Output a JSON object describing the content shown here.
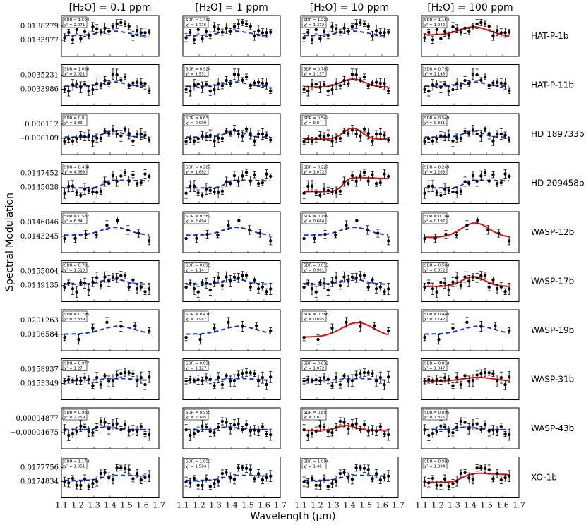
{
  "figure": {
    "column_titles": [
      "[H₂O] = 0.1  ppm",
      "[H₂O] = 1  ppm",
      "[H₂O] = 10  ppm",
      "[H₂O] = 100  ppm"
    ],
    "ylabel": "Spectral Modulation",
    "xlabel": "Wavelength (μm)",
    "xticks": [
      "1.1",
      "1.2",
      "1.3",
      "1.4",
      "1.5",
      "1.6",
      "1.7"
    ],
    "xlim": [
      1.1,
      1.7
    ],
    "colors": {
      "model_fit": "#dd1111",
      "model_flat": "#1133dd",
      "data": "#000000"
    }
  },
  "chart_data": {
    "type": "scatter",
    "rows": [
      {
        "planet": "HAT-P-1b",
        "yticks": [
          "0.0138279",
          "0.0133977"
        ],
        "panels": [
          {
            "sdr": "SDR = 1.504",
            "chi2": "χ² = 2.071",
            "fit": "dashed"
          },
          {
            "sdr": "SDR = 1.432",
            "chi2": "χ² = 1.776",
            "fit": "dashed"
          },
          {
            "sdr": "SDR = 1.223",
            "chi2": "χ² = 1.372",
            "fit": "dashed"
          },
          {
            "sdr": "SDR = 1.154",
            "chi2": "χ² = 1.242",
            "fit": "solid"
          }
        ]
      },
      {
        "planet": "HAT-P-11b",
        "yticks": [
          "0.0035231",
          "0.0033986"
        ],
        "panels": [
          {
            "sdr": "SDR = 1.038",
            "chi2": "χ² = 2.021",
            "fit": "dashed"
          },
          {
            "sdr": "SDR = 0.924",
            "chi2": "χ² = 1.531",
            "fit": "dashed"
          },
          {
            "sdr": "SDR = 0.787",
            "chi2": "χ² = 1.137",
            "fit": "solid"
          },
          {
            "sdr": "SDR = 0.792",
            "chi2": "χ² = 1.145",
            "fit": "dashed"
          }
        ]
      },
      {
        "planet": "HD 189733b",
        "yticks": [
          "0.000112",
          "−0.000109"
        ],
        "panels": [
          {
            "sdr": "SDR = 0.8",
            "chi2": "χ² = 1.83",
            "fit": "dashed"
          },
          {
            "sdr": "SDR = 0.63",
            "chi2": "χ² = 0.999",
            "fit": "dashed"
          },
          {
            "sdr": "SDR = 0.542",
            "chi2": "χ² = 0.8",
            "fit": "solid"
          },
          {
            "sdr": "SDR = 0.549",
            "chi2": "χ² = 0.831",
            "fit": "dashed"
          }
        ]
      },
      {
        "planet": "HD 209458b",
        "yticks": [
          "0.0147452",
          "0.0145028"
        ],
        "panels": [
          {
            "sdr": "SDR = 0.468",
            "chi2": "χ² = 4.669",
            "fit": "dashed"
          },
          {
            "sdr": "SDR = 0.287",
            "chi2": "χ² = 1.682",
            "fit": "dashed"
          },
          {
            "sdr": "SDR = 0.227",
            "chi2": "χ² = 1.072",
            "fit": "solid"
          },
          {
            "sdr": "SDR = 0.249",
            "chi2": "χ² = 1.283",
            "fit": "dashed"
          }
        ]
      },
      {
        "planet": "WASP-12b",
        "yticks": [
          "0.0146046",
          "0.0143245"
        ],
        "panels": [
          {
            "sdr": "SDR = 0.587",
            "chi2": "χ² = 6.84",
            "fit": "dashed"
          },
          {
            "sdr": "SDR = 0.387",
            "chi2": "χ² = 2.494",
            "fit": "dashed"
          },
          {
            "sdr": "SDR = 0.199",
            "chi2": "χ² = 0.664",
            "fit": "dashed"
          },
          {
            "sdr": "SDR = 0.104",
            "chi2": "χ² = 0.197",
            "fit": "solid"
          }
        ]
      },
      {
        "planet": "WASP-17b",
        "yticks": [
          "0.0155004",
          "0.0149135"
        ],
        "panels": [
          {
            "sdr": "SDR = 0.781",
            "chi2": "χ² = 1.519",
            "fit": "dashed"
          },
          {
            "sdr": "SDR = 0.699",
            "chi2": "χ² = 1.14",
            "fit": "dashed"
          },
          {
            "sdr": "SDR = 0.613",
            "chi2": "χ² = 0.901",
            "fit": "dashed"
          },
          {
            "sdr": "SDR = 0.584",
            "chi2": "χ² = 0.852",
            "fit": "solid"
          }
        ]
      },
      {
        "planet": "WASP-19b",
        "yticks": [
          "0.0201263",
          "0.0196584"
        ],
        "panels": [
          {
            "sdr": "SDR = 0.795",
            "chi2": "χ² = 3.339",
            "fit": "dashed"
          },
          {
            "sdr": "SDR = 0.476",
            "chi2": "χ² = 0.987",
            "fit": "dashed"
          },
          {
            "sdr": "SDR = 0.366",
            "chi2": "χ² = 0.695",
            "fit": "solid"
          },
          {
            "sdr": "SDR = 0.448",
            "chi2": "χ² = 1.142",
            "fit": "dashed"
          }
        ]
      },
      {
        "planet": "WASP-31b",
        "yticks": [
          "0.0158937",
          "0.0153349"
        ],
        "panels": [
          {
            "sdr": "SDR = 0.977",
            "chi2": "χ² = 1.27",
            "fit": "dashed"
          },
          {
            "sdr": "SDR = 0.898",
            "chi2": "χ² = 1.127",
            "fit": "dashed"
          },
          {
            "sdr": "SDR = 0.832",
            "chi2": "χ² = 1.072",
            "fit": "dashed"
          },
          {
            "sdr": "SDR = 0.814",
            "chi2": "χ² = 1.047",
            "fit": "solid"
          }
        ]
      },
      {
        "planet": "WASP-43b",
        "yticks": [
          "0.00004877",
          "−0.00004675"
        ],
        "panels": [
          {
            "sdr": "SDR = 0.983",
            "chi2": "χ² = 2.259",
            "fit": "dashed"
          },
          {
            "sdr": "SDR = 0.955",
            "chi2": "χ² = 2.105",
            "fit": "dashed"
          },
          {
            "sdr": "SDR = 0.89",
            "chi2": "χ² = 1.827",
            "fit": "solid"
          },
          {
            "sdr": "SDR = 0.895",
            "chi2": "χ² = 1.856",
            "fit": "dashed"
          }
        ]
      },
      {
        "planet": "XO-1b",
        "yticks": [
          "0.0177756",
          "0.0174834"
        ],
        "panels": [
          {
            "sdr": "SDR = 1.174",
            "chi2": "χ² = 1.951",
            "fit": "dashed"
          },
          {
            "sdr": "SDR = 1.059",
            "chi2": "χ² = 1.584",
            "fit": "dashed"
          },
          {
            "sdr": "SDR = 1.004",
            "chi2": "χ² = 1.46",
            "fit": "dashed"
          },
          {
            "sdr": "SDR = 0.983",
            "chi2": "χ² = 1.394",
            "fit": "solid"
          }
        ]
      }
    ]
  }
}
